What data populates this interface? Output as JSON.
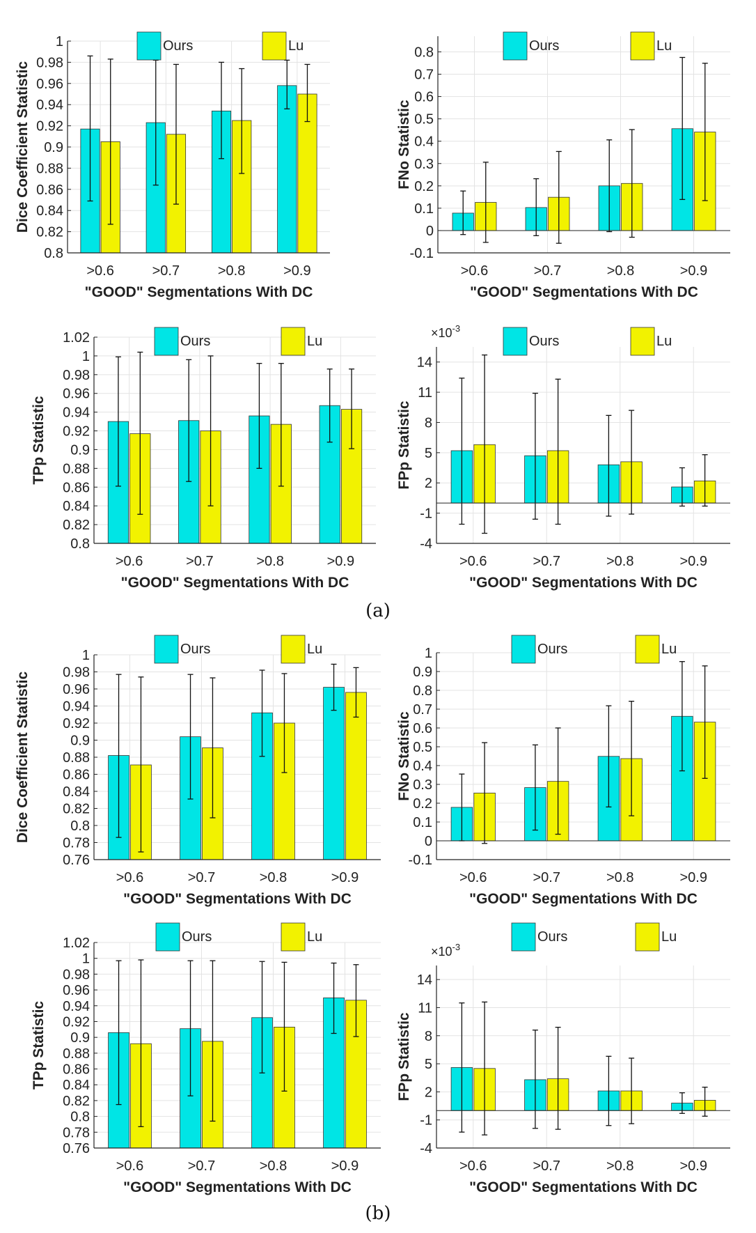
{
  "captions": [
    "(a)",
    "(b)"
  ],
  "legend": {
    "ours": "Ours",
    "lu": "Lu"
  },
  "colors": {
    "ours": "#00e5e5",
    "lu": "#f2f200",
    "grid": "#e3e3e3",
    "axis": "#222222",
    "text": "#222222"
  },
  "chart_data": [
    {
      "id": "a-dice",
      "type": "bar",
      "xlabel": "\"GOOD\" Segmentations With DC",
      "ylabel": "Dice Coefficient Statistic",
      "categories": [
        ">0.6",
        ">0.7",
        ">0.8",
        ">0.9"
      ],
      "ylim": [
        0.8,
        1.0
      ],
      "yticks": [
        0.8,
        0.82,
        0.84,
        0.86,
        0.88,
        0.9,
        0.92,
        0.94,
        0.96,
        0.98,
        1
      ],
      "ytick_labels": [
        "0.8",
        "0.82",
        "0.84",
        "0.86",
        "0.88",
        "0.9",
        "0.92",
        "0.94",
        "0.96",
        "0.98",
        "1"
      ],
      "scale_label": "",
      "grid": true,
      "series": [
        {
          "name": "Ours",
          "values": [
            0.917,
            0.923,
            0.934,
            0.958
          ],
          "err_low": [
            0.849,
            0.864,
            0.889,
            0.936
          ],
          "err_high": [
            0.986,
            0.982,
            0.98,
            0.982
          ]
        },
        {
          "name": "Lu",
          "values": [
            0.905,
            0.912,
            0.925,
            0.95
          ],
          "err_low": [
            0.827,
            0.846,
            0.875,
            0.924
          ],
          "err_high": [
            0.983,
            0.978,
            0.974,
            0.978
          ]
        }
      ]
    },
    {
      "id": "a-fno",
      "type": "bar",
      "xlabel": "\"GOOD\" Segmentations With DC",
      "ylabel": "FNo Statistic",
      "categories": [
        ">0.6",
        ">0.7",
        ">0.8",
        ">0.9"
      ],
      "ylim": [
        -0.1,
        0.87
      ],
      "yticks": [
        -0.1,
        0,
        0.1,
        0.2,
        0.3,
        0.4,
        0.5,
        0.6,
        0.7,
        0.8
      ],
      "ytick_labels": [
        "-0.1",
        "0",
        "0.1",
        "0.2",
        "0.3",
        "0.4",
        "0.5",
        "0.6",
        "0.7",
        "0.8"
      ],
      "scale_label": "",
      "grid": true,
      "series": [
        {
          "name": "Ours",
          "values": [
            0.078,
            0.103,
            0.2,
            0.456
          ],
          "err_low": [
            -0.018,
            -0.023,
            -0.005,
            0.139
          ],
          "err_high": [
            0.177,
            0.232,
            0.406,
            0.775
          ]
        },
        {
          "name": "Lu",
          "values": [
            0.126,
            0.149,
            0.211,
            0.441
          ],
          "err_low": [
            -0.053,
            -0.057,
            -0.03,
            0.134
          ],
          "err_high": [
            0.306,
            0.354,
            0.452,
            0.749
          ]
        }
      ]
    },
    {
      "id": "a-tpp",
      "type": "bar",
      "xlabel": "\"GOOD\" Segmentations With DC",
      "ylabel": "TPp Statistic",
      "categories": [
        ">0.6",
        ">0.7",
        ">0.8",
        ">0.9"
      ],
      "ylim": [
        0.8,
        1.02
      ],
      "yticks": [
        0.8,
        0.82,
        0.84,
        0.86,
        0.88,
        0.9,
        0.92,
        0.94,
        0.96,
        0.98,
        1,
        1.02
      ],
      "ytick_labels": [
        "0.8",
        "0.82",
        "0.84",
        "0.86",
        "0.88",
        "0.9",
        "0.92",
        "0.94",
        "0.96",
        "0.98",
        "1",
        "1.02"
      ],
      "scale_label": "",
      "grid": true,
      "series": [
        {
          "name": "Ours",
          "values": [
            0.93,
            0.931,
            0.936,
            0.947
          ],
          "err_low": [
            0.861,
            0.866,
            0.88,
            0.908
          ],
          "err_high": [
            0.999,
            0.996,
            0.992,
            0.986
          ]
        },
        {
          "name": "Lu",
          "values": [
            0.917,
            0.92,
            0.927,
            0.943
          ],
          "err_low": [
            0.831,
            0.84,
            0.861,
            0.901
          ],
          "err_high": [
            1.004,
            1.0,
            0.992,
            0.986
          ]
        }
      ]
    },
    {
      "id": "a-fpp",
      "type": "bar",
      "xlabel": "\"GOOD\" Segmentations With DC",
      "ylabel": "FPp Statistic",
      "categories": [
        ">0.6",
        ">0.7",
        ">0.8",
        ">0.9"
      ],
      "ylim": [
        -4,
        15.5
      ],
      "yticks": [
        -4,
        -1,
        2,
        5,
        8,
        11,
        14
      ],
      "ytick_labels": [
        "-4",
        "-1",
        "2",
        "5",
        "8",
        "11",
        "14"
      ],
      "scale_label": "×10",
      "scale_exp": "-3",
      "grid": true,
      "series": [
        {
          "name": "Ours",
          "values": [
            5.2,
            4.7,
            3.8,
            1.6
          ],
          "err_low": [
            -2.1,
            -1.6,
            -1.3,
            -0.3
          ],
          "err_high": [
            12.4,
            10.9,
            8.7,
            3.5
          ]
        },
        {
          "name": "Lu",
          "values": [
            5.8,
            5.2,
            4.1,
            2.2
          ],
          "err_low": [
            -3.0,
            -2.1,
            -1.1,
            -0.3
          ],
          "err_high": [
            14.7,
            12.3,
            9.2,
            4.8
          ]
        }
      ]
    },
    {
      "id": "b-dice",
      "type": "bar",
      "xlabel": "\"GOOD\" Segmentations With DC",
      "ylabel": "Dice Coefficient Statistic",
      "categories": [
        ">0.6",
        ">0.7",
        ">0.8",
        ">0.9"
      ],
      "ylim": [
        0.76,
        1.0
      ],
      "yticks": [
        0.76,
        0.78,
        0.8,
        0.82,
        0.84,
        0.86,
        0.88,
        0.9,
        0.92,
        0.94,
        0.96,
        0.98,
        1
      ],
      "ytick_labels": [
        "0.76",
        "0.78",
        "0.8",
        "0.82",
        "0.84",
        "0.86",
        "0.88",
        "0.9",
        "0.92",
        "0.94",
        "0.96",
        "0.98",
        "1"
      ],
      "scale_label": "",
      "grid": true,
      "series": [
        {
          "name": "Ours",
          "values": [
            0.882,
            0.904,
            0.932,
            0.962
          ],
          "err_low": [
            0.786,
            0.831,
            0.881,
            0.935
          ],
          "err_high": [
            0.977,
            0.977,
            0.982,
            0.989
          ]
        },
        {
          "name": "Lu",
          "values": [
            0.871,
            0.891,
            0.92,
            0.956
          ],
          "err_low": [
            0.769,
            0.809,
            0.862,
            0.927
          ],
          "err_high": [
            0.974,
            0.973,
            0.978,
            0.985
          ]
        }
      ]
    },
    {
      "id": "b-fno",
      "type": "bar",
      "xlabel": "\"GOOD\" Segmentations With DC",
      "ylabel": "FNo Statistic",
      "categories": [
        ">0.6",
        ">0.7",
        ">0.8",
        ">0.9"
      ],
      "ylim": [
        -0.1,
        1.0
      ],
      "yticks": [
        -0.1,
        0,
        0.1,
        0.2,
        0.3,
        0.4,
        0.5,
        0.6,
        0.7,
        0.8,
        0.9,
        1
      ],
      "ytick_labels": [
        "-0.1",
        "0",
        "0.1",
        "0.2",
        "0.3",
        "0.4",
        "0.5",
        "0.6",
        "0.7",
        "0.8",
        "0.9",
        "1"
      ],
      "scale_label": "",
      "grid": true,
      "series": [
        {
          "name": "Ours",
          "values": [
            0.178,
            0.283,
            0.449,
            0.662
          ],
          "err_low": [
            0.0,
            0.057,
            0.18,
            0.372
          ],
          "err_high": [
            0.355,
            0.51,
            0.718,
            0.953
          ]
        },
        {
          "name": "Lu",
          "values": [
            0.254,
            0.316,
            0.437,
            0.631
          ],
          "err_low": [
            -0.014,
            0.035,
            0.133,
            0.332
          ],
          "err_high": [
            0.522,
            0.6,
            0.742,
            0.93
          ]
        }
      ]
    },
    {
      "id": "b-tpp",
      "type": "bar",
      "xlabel": "\"GOOD\" Segmentations With DC",
      "ylabel": "TPp Statistic",
      "categories": [
        ">0.6",
        ">0.7",
        ">0.8",
        ">0.9"
      ],
      "ylim": [
        0.76,
        1.02
      ],
      "yticks": [
        0.76,
        0.78,
        0.8,
        0.82,
        0.84,
        0.86,
        0.88,
        0.9,
        0.92,
        0.94,
        0.96,
        0.98,
        1,
        1.02
      ],
      "ytick_labels": [
        "0.76",
        "0.78",
        "0.8",
        "0.82",
        "0.84",
        "0.86",
        "0.88",
        "0.9",
        "0.92",
        "0.94",
        "0.96",
        "0.98",
        "1",
        "1.02"
      ],
      "scale_label": "",
      "grid": true,
      "series": [
        {
          "name": "Ours",
          "values": [
            0.906,
            0.911,
            0.925,
            0.95
          ],
          "err_low": [
            0.815,
            0.826,
            0.855,
            0.905
          ],
          "err_high": [
            0.997,
            0.997,
            0.996,
            0.994
          ]
        },
        {
          "name": "Lu",
          "values": [
            0.892,
            0.895,
            0.913,
            0.947
          ],
          "err_low": [
            0.787,
            0.794,
            0.832,
            0.901
          ],
          "err_high": [
            0.998,
            0.997,
            0.995,
            0.992
          ]
        }
      ]
    },
    {
      "id": "b-fpp",
      "type": "bar",
      "xlabel": "\"GOOD\" Segmentations With DC",
      "ylabel": "FPp Statistic",
      "categories": [
        ">0.6",
        ">0.7",
        ">0.8",
        ">0.9"
      ],
      "ylim": [
        -4,
        15.5
      ],
      "yticks": [
        -4,
        -1,
        2,
        5,
        8,
        11,
        14
      ],
      "ytick_labels": [
        "-4",
        "-1",
        "2",
        "5",
        "8",
        "11",
        "14"
      ],
      "scale_label": "×10",
      "scale_exp": "-3",
      "grid": true,
      "series": [
        {
          "name": "Ours",
          "values": [
            4.6,
            3.3,
            2.1,
            0.8
          ],
          "err_low": [
            -2.3,
            -1.9,
            -1.6,
            -0.3
          ],
          "err_high": [
            11.5,
            8.6,
            5.8,
            1.9
          ]
        },
        {
          "name": "Lu",
          "values": [
            4.5,
            3.4,
            2.1,
            1.1
          ],
          "err_low": [
            -2.6,
            -2.0,
            -1.4,
            -0.6
          ],
          "err_high": [
            11.6,
            8.9,
            5.6,
            2.5
          ]
        }
      ]
    }
  ]
}
